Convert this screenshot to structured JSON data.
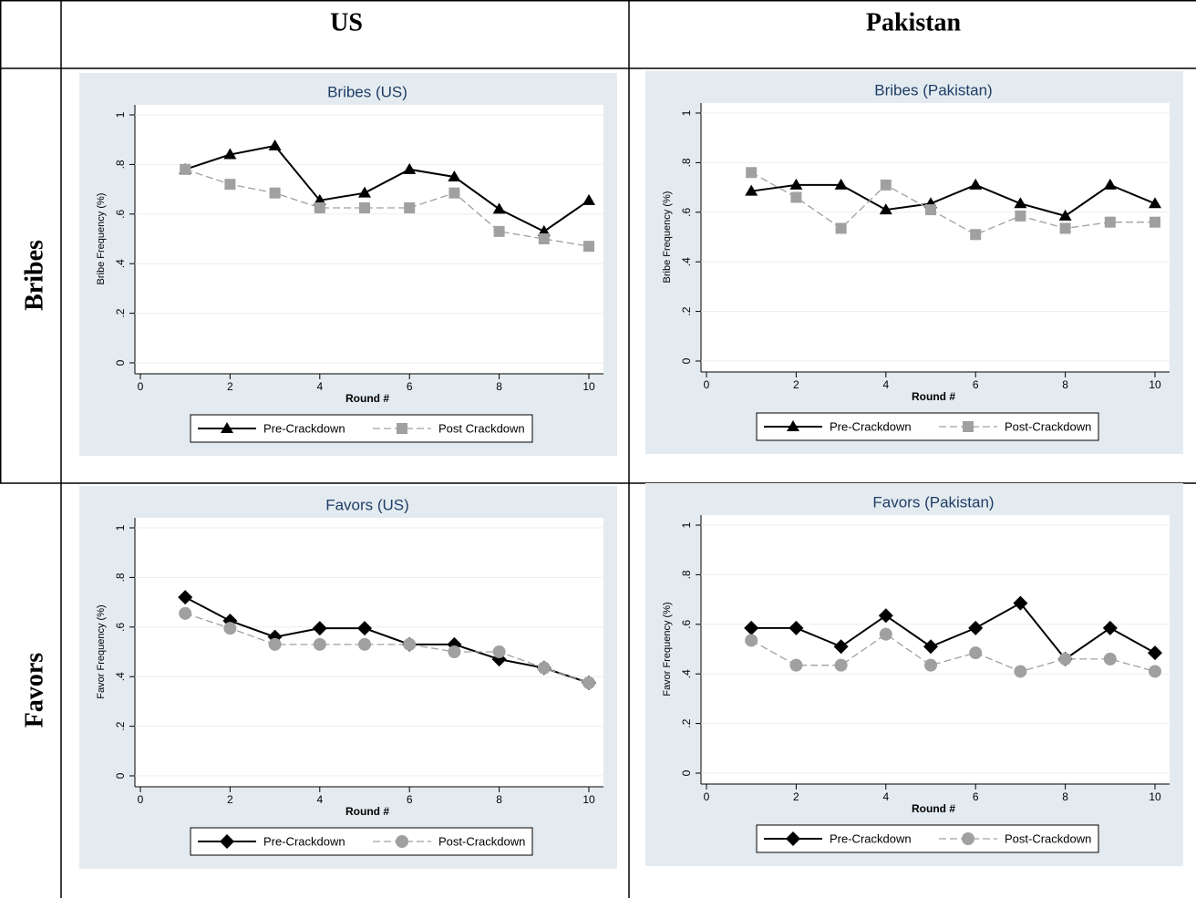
{
  "table": {
    "col_headers": [
      "US",
      "Pakistan"
    ],
    "row_headers": [
      "Bribes",
      "Favors"
    ]
  },
  "chart_data": [
    {
      "type": "line",
      "title": "Bribes (US)",
      "xlabel": "Round #",
      "ylabel": "Bribe Frequency (%)",
      "x": [
        1,
        2,
        3,
        4,
        5,
        6,
        7,
        8,
        9,
        10
      ],
      "xlim": [
        0,
        10
      ],
      "xticks": [
        0,
        2,
        4,
        6,
        8,
        10
      ],
      "ylim": [
        0,
        1
      ],
      "yticks": [
        0,
        {
          "value": 0.2,
          "label": ".2"
        },
        {
          "value": 0.4,
          "label": ".4"
        },
        {
          "value": 0.6,
          "label": ".6"
        },
        {
          "value": 0.8,
          "label": ".8"
        },
        1
      ],
      "grid": true,
      "legend": "bottom",
      "series": [
        {
          "name": "Pre-Crackdown",
          "color": "#000000",
          "marker": "triangle",
          "dash": "solid",
          "values": [
            0.78,
            0.84,
            0.875,
            0.655,
            0.685,
            0.78,
            0.75,
            0.62,
            0.53,
            0.655
          ]
        },
        {
          "name": "Post Crackdown",
          "color": "#a0a0a0",
          "marker": "square",
          "dash": "dashed",
          "values": [
            0.78,
            0.72,
            0.685,
            0.625,
            0.625,
            0.625,
            0.685,
            0.53,
            0.5,
            0.47
          ]
        }
      ]
    },
    {
      "type": "line",
      "title": "Bribes (Pakistan)",
      "xlabel": "Round #",
      "ylabel": "Bribe Frequency (%)",
      "x": [
        1,
        2,
        3,
        4,
        5,
        6,
        7,
        8,
        9,
        10
      ],
      "xlim": [
        0,
        10
      ],
      "xticks": [
        0,
        2,
        4,
        6,
        8,
        10
      ],
      "ylim": [
        0,
        1
      ],
      "yticks": [
        0,
        {
          "value": 0.2,
          "label": ".2"
        },
        {
          "value": 0.4,
          "label": ".4"
        },
        {
          "value": 0.6,
          "label": ".6"
        },
        {
          "value": 0.8,
          "label": ".8"
        },
        1
      ],
      "grid": true,
      "legend": "bottom",
      "series": [
        {
          "name": "Pre-Crackdown",
          "color": "#000000",
          "marker": "triangle",
          "dash": "solid",
          "values": [
            0.685,
            0.71,
            0.71,
            0.61,
            0.635,
            0.71,
            0.635,
            0.585,
            0.71,
            0.635
          ]
        },
        {
          "name": "Post-Crackdown",
          "color": "#a0a0a0",
          "marker": "square",
          "dash": "dashed",
          "values": [
            0.76,
            0.66,
            0.535,
            0.71,
            0.61,
            0.51,
            0.585,
            0.535,
            0.56,
            0.56
          ]
        }
      ]
    },
    {
      "type": "line",
      "title": "Favors (US)",
      "xlabel": "Round #",
      "ylabel": "Favor Frequency (%)",
      "x": [
        1,
        2,
        3,
        4,
        5,
        6,
        7,
        8,
        9,
        10
      ],
      "xlim": [
        0,
        10
      ],
      "xticks": [
        0,
        2,
        4,
        6,
        8,
        10
      ],
      "ylim": [
        0,
        1
      ],
      "yticks": [
        0,
        {
          "value": 0.2,
          "label": ".2"
        },
        {
          "value": 0.4,
          "label": ".4"
        },
        {
          "value": 0.6,
          "label": ".6"
        },
        {
          "value": 0.8,
          "label": ".8"
        },
        1
      ],
      "grid": true,
      "legend": "bottom",
      "series": [
        {
          "name": "Pre-Crackdown",
          "color": "#000000",
          "marker": "diamond",
          "dash": "solid",
          "values": [
            0.72,
            0.625,
            0.56,
            0.595,
            0.595,
            0.53,
            0.53,
            0.47,
            0.435,
            0.375
          ]
        },
        {
          "name": "Post-Crackdown",
          "color": "#a0a0a0",
          "marker": "circle",
          "dash": "dashed",
          "values": [
            0.655,
            0.595,
            0.53,
            0.53,
            0.53,
            0.53,
            0.5,
            0.5,
            0.435,
            0.375
          ]
        }
      ]
    },
    {
      "type": "line",
      "title": "Favors (Pakistan)",
      "xlabel": "Round #",
      "ylabel": "Favor Frequency (%)",
      "x": [
        1,
        2,
        3,
        4,
        5,
        6,
        7,
        8,
        9,
        10
      ],
      "xlim": [
        0,
        10
      ],
      "xticks": [
        0,
        2,
        4,
        6,
        8,
        10
      ],
      "ylim": [
        0,
        1
      ],
      "yticks": [
        0,
        {
          "value": 0.2,
          "label": ".2"
        },
        {
          "value": 0.4,
          "label": ".4"
        },
        {
          "value": 0.6,
          "label": ".6"
        },
        {
          "value": 0.8,
          "label": ".8"
        },
        1
      ],
      "grid": true,
      "legend": "bottom",
      "series": [
        {
          "name": "Pre-Crackdown",
          "color": "#000000",
          "marker": "diamond",
          "dash": "solid",
          "values": [
            0.585,
            0.585,
            0.51,
            0.635,
            0.51,
            0.585,
            0.685,
            0.46,
            0.585,
            0.485
          ]
        },
        {
          "name": "Post-Crackdown",
          "color": "#a0a0a0",
          "marker": "circle",
          "dash": "dashed",
          "values": [
            0.535,
            0.435,
            0.435,
            0.56,
            0.435,
            0.485,
            0.41,
            0.46,
            0.46,
            0.41
          ]
        }
      ]
    }
  ]
}
